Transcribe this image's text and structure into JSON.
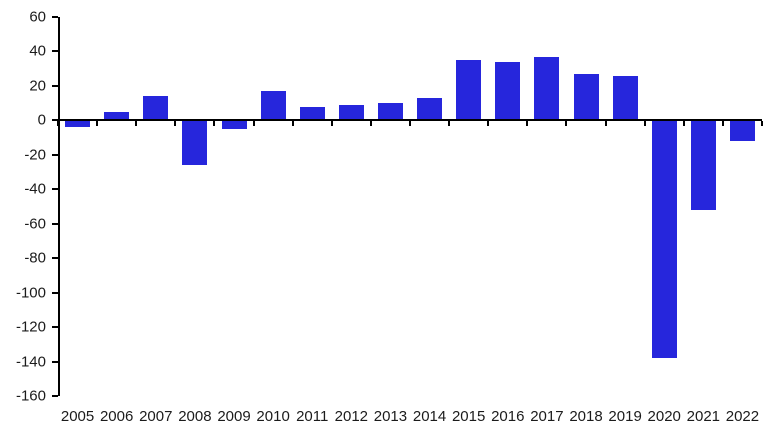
{
  "chart_data": {
    "type": "bar",
    "title": "",
    "xlabel": "",
    "ylabel": "",
    "categories": [
      "2005",
      "2006",
      "2007",
      "2008",
      "2009",
      "2010",
      "2011",
      "2012",
      "2013",
      "2014",
      "2015",
      "2016",
      "2017",
      "2018",
      "2019",
      "2020",
      "2021",
      "2022"
    ],
    "values": [
      -4,
      5,
      14,
      -26,
      -5,
      17,
      8,
      9,
      10,
      13,
      35,
      34,
      37,
      27,
      26,
      -138,
      -52,
      -12
    ],
    "ylim": [
      -160,
      60
    ],
    "ytick_step": 20,
    "yticks": [
      60,
      40,
      20,
      0,
      -20,
      -40,
      -60,
      -80,
      -100,
      -120,
      -140,
      -160
    ],
    "grid": false,
    "legend": null,
    "bar_color": "#2626DC",
    "axis_color": "#000000",
    "label_color": "#1b1b1b",
    "background_color": "#ffffff"
  }
}
